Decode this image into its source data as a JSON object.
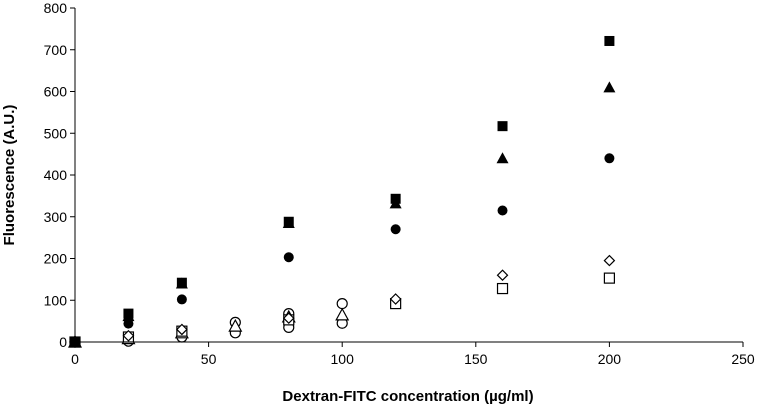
{
  "chart_data": {
    "type": "scatter",
    "title": "",
    "xlabel": "Dextran-FITC concentration (µg/ml)",
    "ylabel": "Fluorescence (A.U.)",
    "xlim": [
      0,
      250
    ],
    "ylim": [
      0,
      800
    ],
    "x_ticks": [
      0,
      50,
      100,
      150,
      200,
      250
    ],
    "y_ticks": [
      0,
      100,
      200,
      300,
      400,
      500,
      600,
      700,
      800
    ],
    "grid": false,
    "legend": "none",
    "series": [
      {
        "marker": "filled-square",
        "points": [
          [
            0,
            0
          ],
          [
            20,
            68
          ],
          [
            40,
            142
          ],
          [
            80,
            288
          ],
          [
            120,
            343
          ],
          [
            160,
            517
          ],
          [
            200,
            721
          ]
        ]
      },
      {
        "marker": "filled-triangle",
        "points": [
          [
            0,
            0
          ],
          [
            20,
            62
          ],
          [
            40,
            140
          ],
          [
            80,
            285
          ],
          [
            120,
            332
          ],
          [
            160,
            440
          ],
          [
            200,
            610
          ]
        ]
      },
      {
        "marker": "filled-circle",
        "points": [
          [
            0,
            0
          ],
          [
            20,
            44
          ],
          [
            40,
            102
          ],
          [
            80,
            203
          ],
          [
            120,
            270
          ],
          [
            160,
            315
          ],
          [
            200,
            440
          ]
        ]
      },
      {
        "marker": "open-diamond",
        "points": [
          [
            0,
            0
          ],
          [
            20,
            15
          ],
          [
            40,
            30
          ],
          [
            80,
            57
          ],
          [
            120,
            103
          ],
          [
            160,
            160
          ],
          [
            200,
            195
          ]
        ]
      },
      {
        "marker": "open-square",
        "points": [
          [
            0,
            0
          ],
          [
            20,
            12
          ],
          [
            40,
            26
          ],
          [
            80,
            53
          ],
          [
            120,
            92
          ],
          [
            160,
            128
          ],
          [
            200,
            153
          ]
        ]
      },
      {
        "marker": "open-triangle",
        "points": [
          [
            0,
            0
          ],
          [
            20,
            8
          ],
          [
            40,
            22
          ],
          [
            60,
            38
          ],
          [
            80,
            60
          ],
          [
            100,
            65
          ]
        ]
      },
      {
        "marker": "open-circle",
        "points": [
          [
            0,
            0
          ],
          [
            20,
            2
          ],
          [
            40,
            12
          ],
          [
            60,
            22
          ],
          [
            60,
            47
          ],
          [
            80,
            35
          ],
          [
            80,
            68
          ],
          [
            100,
            45
          ],
          [
            100,
            92
          ]
        ]
      }
    ]
  }
}
